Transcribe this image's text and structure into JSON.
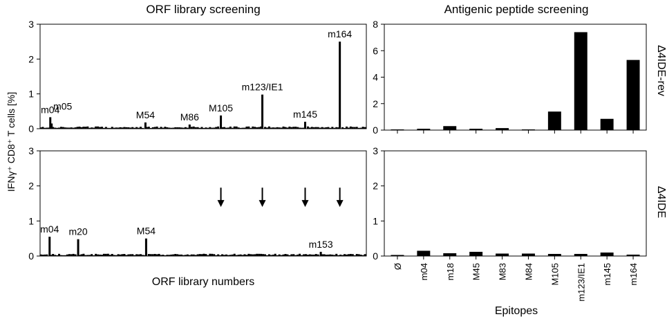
{
  "titles": {
    "left": "ORF library screening",
    "right": "Antigenic peptide screening"
  },
  "shared_labels": {
    "left_ylabel": "IFNγ⁺ CD8⁺ T cells [%]",
    "left_xlabel": "ORF library numbers",
    "right_xlabel": "Epitopes",
    "row_top": "Δ4IDE-rev",
    "row_bottom": "Δ4IDE"
  },
  "chart_data": [
    {
      "id": "orf-top",
      "type": "bar",
      "title": "ORF library screening",
      "ylabel": "IFNγ⁺ CD8⁺ T cells [%]",
      "ylim": [
        0,
        3
      ],
      "yticks": [
        "0",
        "1",
        "2",
        "3"
      ],
      "x_range": [
        0,
        480
      ],
      "baseline": 0.05,
      "peaks": [
        {
          "x": 15,
          "value": 0.33,
          "label": "m04"
        },
        {
          "x": 17,
          "value": 0.15,
          "label": "m05"
        },
        {
          "x": 155,
          "value": 0.18,
          "label": "M54"
        },
        {
          "x": 220,
          "value": 0.12,
          "label": "M86"
        },
        {
          "x": 266,
          "value": 0.38,
          "label": "M105"
        },
        {
          "x": 327,
          "value": 0.98,
          "label": "m123/IE1"
        },
        {
          "x": 390,
          "value": 0.2,
          "label": "m145"
        },
        {
          "x": 441,
          "value": 2.5,
          "label": "m164"
        }
      ]
    },
    {
      "id": "orf-bottom",
      "type": "bar",
      "title": "",
      "ylabel": "IFNγ⁺ CD8⁺ T cells [%]",
      "xlabel": "ORF library numbers",
      "ylim": [
        0,
        3
      ],
      "yticks": [
        "0",
        "1",
        "2",
        "3"
      ],
      "x_range": [
        0,
        480
      ],
      "baseline": 0.05,
      "peaks": [
        {
          "x": 14,
          "value": 0.55,
          "label": "m04"
        },
        {
          "x": 56,
          "value": 0.48,
          "label": "m20"
        },
        {
          "x": 156,
          "value": 0.5,
          "label": "M54"
        },
        {
          "x": 413,
          "value": 0.12,
          "label": "m153"
        }
      ],
      "arrows_at_x": [
        266,
        327,
        390,
        441
      ]
    },
    {
      "id": "peptide-top",
      "type": "bar",
      "title": "Antigenic peptide screening",
      "row_label": "Δ4IDE-rev",
      "ylim": [
        0,
        8
      ],
      "yticks": [
        "0",
        "2",
        "4",
        "6",
        "8"
      ],
      "categories": [
        "Ø",
        "m04",
        "m18",
        "M45",
        "M83",
        "M84",
        "M105",
        "m123/IE1",
        "m145",
        "m164"
      ],
      "values": [
        0.05,
        0.1,
        0.3,
        0.1,
        0.15,
        0.05,
        1.4,
        7.4,
        0.85,
        5.3
      ]
    },
    {
      "id": "peptide-bottom",
      "type": "bar",
      "title": "",
      "row_label": "Δ4IDE",
      "xlabel": "Epitopes",
      "ylim": [
        0,
        3
      ],
      "yticks": [
        "0",
        "1",
        "2",
        "3"
      ],
      "categories": [
        "Ø",
        "m04",
        "m18",
        "M45",
        "M83",
        "M84",
        "M105",
        "m123/IE1",
        "m145",
        "m164"
      ],
      "values": [
        0.03,
        0.15,
        0.08,
        0.12,
        0.07,
        0.07,
        0.06,
        0.06,
        0.1,
        0.04
      ]
    }
  ]
}
